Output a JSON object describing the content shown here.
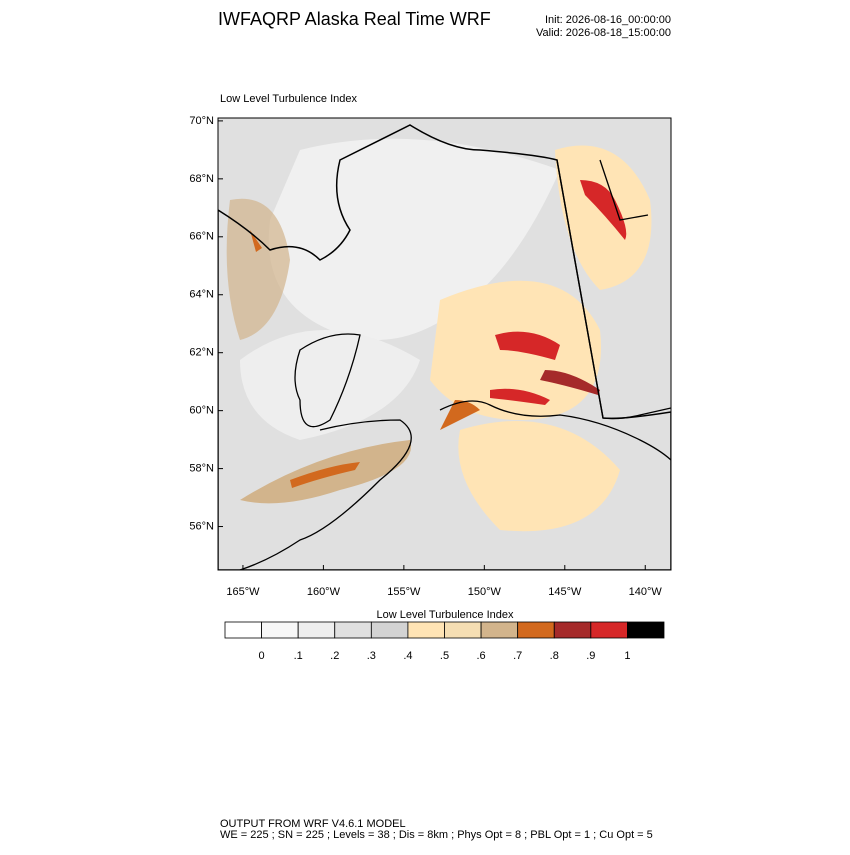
{
  "header": {
    "title": "IWFAQRP Alaska Real Time WRF",
    "init": "Init: 2026-08-16_00:00:00",
    "valid": "Valid: 2026-08-18_15:00:00"
  },
  "map": {
    "title": "Low Level Turbulence Index",
    "ylim": [
      54.5,
      70.1
    ],
    "xlim": [
      -166.55,
      -138.4
    ],
    "yticks": [
      {
        "value": 70,
        "label": "70°N"
      },
      {
        "value": 68,
        "label": "68°N"
      },
      {
        "value": 66,
        "label": "66°N"
      },
      {
        "value": 64,
        "label": "64°N"
      },
      {
        "value": 62,
        "label": "62°N"
      },
      {
        "value": 60,
        "label": "60°N"
      },
      {
        "value": 58,
        "label": "58°N"
      },
      {
        "value": 56,
        "label": "56°N"
      }
    ],
    "xticks": [
      {
        "value": -165,
        "label": "165°W"
      },
      {
        "value": -160,
        "label": "160°W"
      },
      {
        "value": -155,
        "label": "155°W"
      },
      {
        "value": -150,
        "label": "150°W"
      },
      {
        "value": -145,
        "label": "145°W"
      },
      {
        "value": -140,
        "label": "140°W"
      }
    ]
  },
  "colorbar": {
    "title": "Low Level Turbulence Index",
    "colors": [
      "#ffffff",
      "#f7f7f7",
      "#eeeeee",
      "#e0e0e0",
      "#d3d3d3",
      "#ffe4b5",
      "#f5deb3",
      "#d2b48c",
      "#d2691e",
      "#a52a2a",
      "#d62728",
      "#000000"
    ],
    "ticks": [
      0,
      {
        "value": 0.1,
        "label": ".1"
      },
      {
        "value": 0.2,
        "label": ".2"
      },
      {
        "value": 0.3,
        "label": ".3"
      },
      {
        "value": 0.4,
        "label": ".4"
      },
      {
        "value": 0.5,
        "label": ".5"
      },
      {
        "value": 0.6,
        "label": ".6"
      },
      {
        "value": 0.7,
        "label": ".7"
      },
      {
        "value": 0.8,
        "label": ".8"
      },
      {
        "value": 0.9,
        "label": ".9"
      },
      1
    ]
  },
  "footer": {
    "line1": "OUTPUT FROM WRF V4.6.1 MODEL",
    "line2": "WE = 225 ; SN = 225 ; Levels = 38 ; Dis = 8km ; Phys Opt = 8 ; PBL Opt = 1 ; Cu Opt = 5"
  }
}
